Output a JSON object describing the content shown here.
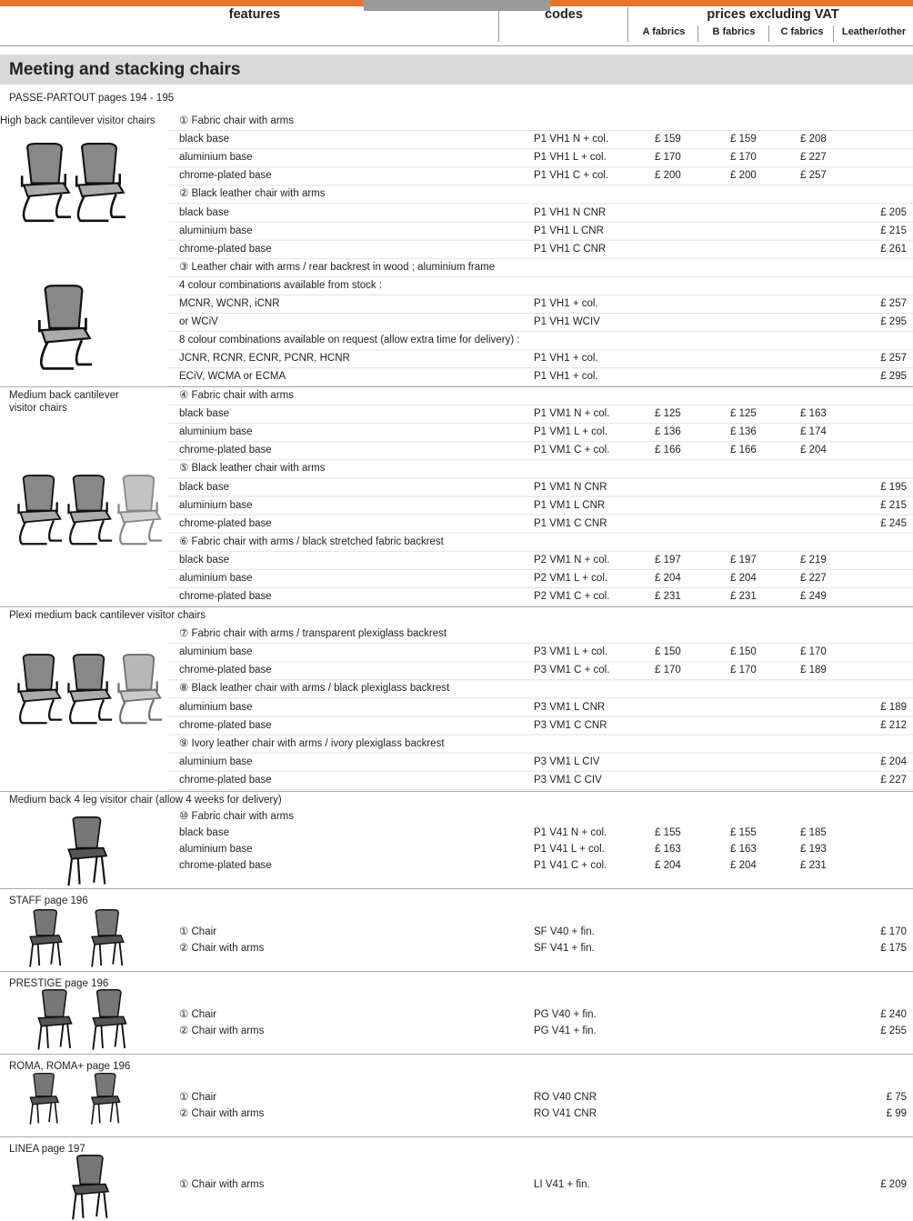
{
  "header": {
    "features": "features",
    "codes": "codes",
    "prices": "prices excluding VAT",
    "a": "A fabrics",
    "b": "B fabrics",
    "c": "C fabrics",
    "other": "Leather/other"
  },
  "section": {
    "title": "Meeting and stacking chairs",
    "series_title": "PASSE-PARTOUT pages 194 - 195",
    "groups": [
      {
        "rows": [
          {
            "label": "High back cantilever visitor chairs",
            "desc": "① Fabric chair with arms"
          },
          {
            "desc": "black base",
            "code": "P1 VH1 N + col.",
            "a": "£ 159",
            "b": "£ 159",
            "c": "£ 208"
          },
          {
            "desc": "aluminium base",
            "code": "P1 VH1 L + col.",
            "a": "£ 170",
            "b": "£ 170",
            "c": "£ 227"
          },
          {
            "desc": "chrome-plated base",
            "code": "P1 VH1 C + col.",
            "a": "£ 200",
            "b": "£ 200",
            "c": "£ 257"
          },
          {
            "desc": "② Black leather chair with arms"
          },
          {
            "desc": "black base",
            "code": "P1 VH1 N CNR",
            "other": "£ 205"
          },
          {
            "desc": "aluminium base",
            "code": "P1 VH1 L CNR",
            "other": "£ 215"
          },
          {
            "desc": "chrome-plated base",
            "code": "P1 VH1 C CNR",
            "other": "£ 261"
          },
          {
            "desc": "③ Leather chair with arms / rear backrest in wood  ; aluminium frame"
          },
          {
            "desc": "4 colour combinations available from stock :"
          },
          {
            "desc": "MCNR, WCNR, iCNR",
            "code": "P1 VH1 + col.",
            "other": "£ 257"
          },
          {
            "desc": "or WCiV",
            "code": "P1 VH1 WCIV",
            "other": "£ 295"
          },
          {
            "desc": "8 colour combinations available on request (allow extra time for delivery) :"
          },
          {
            "desc": "JCNR, RCNR, ECNR, PCNR, HCNR",
            "code": "P1 VH1 + col.",
            "other": "£ 257"
          },
          {
            "desc": "ECiV, WCMA or ECMA",
            "code": "P1 VH1  + col.",
            "other": "£ 295"
          }
        ]
      },
      {
        "rows": [
          {
            "label": "Medium back cantilever visitor chairs",
            "desc": "④ Fabric chair with arms"
          },
          {
            "desc": "black base",
            "code": "P1 VM1 N + col.",
            "a": "£ 125",
            "b": "£ 125",
            "c": "£ 163"
          },
          {
            "desc": "aluminium base",
            "code": "P1 VM1 L + col.",
            "a": "£ 136",
            "b": "£ 136",
            "c": "£ 174"
          },
          {
            "desc": "chrome-plated base",
            "code": "P1 VM1 C + col.",
            "a": "£ 166",
            "b": "£ 166",
            "c": "£ 204"
          },
          {
            "desc": "⑤ Black leather chair with arms"
          },
          {
            "desc": "black base",
            "code": "P1 VM1 N CNR",
            "other": "£ 195"
          },
          {
            "desc": "aluminium base",
            "code": "P1 VM1 L CNR",
            "other": "£ 215"
          },
          {
            "desc": "chrome-plated base",
            "code": "P1 VM1 C CNR",
            "other": "£ 245"
          },
          {
            "desc": "⑥ Fabric chair with arms / black stretched fabric backrest"
          },
          {
            "desc": "black base",
            "code": "P2 VM1 N + col.",
            "a": "£ 197",
            "b": "£ 197",
            "c": "£ 219"
          },
          {
            "desc": "aluminium base",
            "code": "P2 VM1 L + col.",
            "a": "£ 204",
            "b": "£ 204",
            "c": "£ 227"
          },
          {
            "desc": "chrome-plated base",
            "code": "P2 VM1 C + col.",
            "a": "£ 231",
            "b": "£ 231",
            "c": "£ 249"
          }
        ]
      },
      {
        "rows": [
          {
            "label": "Plexi medium back cantilever visitor chairs"
          },
          {
            "desc": "⑦ Fabric chair with arms / transparent plexiglass backrest"
          },
          {
            "desc": "aluminium base",
            "code": "P3 VM1 L + col.",
            "a": "£ 150",
            "b": "£ 150",
            "c": "£ 170"
          },
          {
            "desc": "chrome-plated base",
            "code": "P3 VM1 C + col.",
            "a": "£ 170",
            "b": "£ 170",
            "c": "£ 189"
          },
          {
            "desc": "⑧ Black leather chair with arms / black plexiglass backrest"
          },
          {
            "desc": "aluminium base",
            "code": "P3 VM1 L CNR",
            "other": "£ 189"
          },
          {
            "desc": "chrome-plated base",
            "code": "P3 VM1 C CNR",
            "other": "£ 212"
          },
          {
            "desc": "⑨ Ivory leather chair with arms / ivory plexiglass backrest"
          },
          {
            "desc": "aluminium base",
            "code": "P3 VM1 L CIV",
            "other": "£ 204"
          },
          {
            "desc": "chrome-plated base",
            "code": "P3 VM1 C CIV",
            "other": "£ 227"
          }
        ]
      },
      {
        "rows": [
          {
            "label": "Medium back 4 leg visitor chair (allow 4 weeks for delivery)"
          },
          {
            "desc": "⑩ Fabric chair with arms"
          },
          {
            "desc": "black base",
            "code": "P1 V41 N + col.",
            "a": "£ 155",
            "b": "£ 155",
            "c": "£ 185"
          },
          {
            "desc": "aluminium base",
            "code": "P1 V41 L + col.",
            "a": "£ 163",
            "b": "£ 163",
            "c": "£ 193"
          },
          {
            "desc": "chrome-plated base",
            "code": "P1 V41 C + col.",
            "a": "£ 204",
            "b": "£ 204",
            "c": "£ 231"
          }
        ]
      }
    ]
  },
  "products": [
    {
      "title": "STAFF page 196",
      "rows": [
        {
          "desc": "① Chair",
          "code": "SF V40 + fin.",
          "other": "£ 170"
        },
        {
          "desc": "② Chair with arms",
          "code": "SF V41 + fin.",
          "other": "£ 175"
        }
      ]
    },
    {
      "title": "PRESTIGE page 196",
      "rows": [
        {
          "desc": "① Chair",
          "code": "PG V40 + fin.",
          "other": "£ 240"
        },
        {
          "desc": "② Chair with arms",
          "code": "PG V41 + fin.",
          "other": "£ 255"
        }
      ]
    },
    {
      "title": "ROMA, ROMA+ page 196",
      "rows": [
        {
          "desc": "① Chair",
          "code": "RO V40 CNR",
          "other": "£ 75"
        },
        {
          "desc": "② Chair with arms",
          "code": "RO V41 CNR",
          "other": "£ 99"
        }
      ]
    },
    {
      "title": "LINEA page 197",
      "rows": [
        {
          "desc": "① Chair with arms",
          "code": "LI V41 + fin.",
          "other": "£ 209"
        }
      ]
    }
  ]
}
